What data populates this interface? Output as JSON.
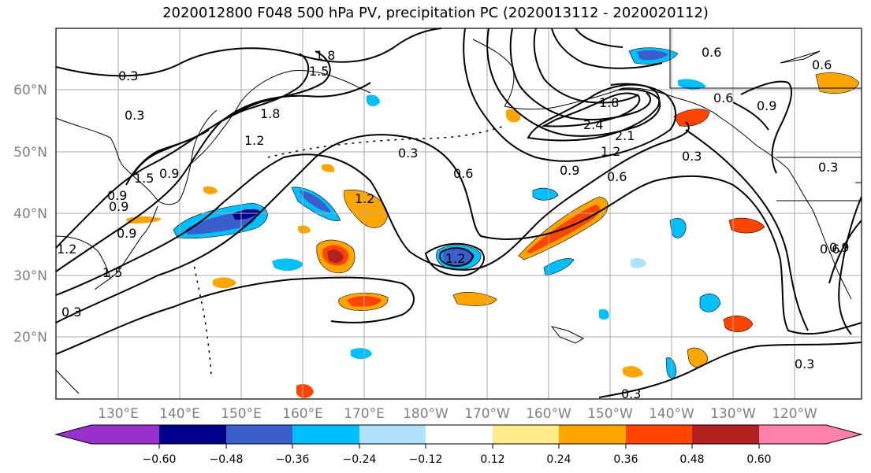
{
  "title": "2020012800 F048 500 hPa PV, precipitation PC (2020013112 - 2020020112)",
  "lat_labels": [
    "60°N",
    "50°N",
    "40°N",
    "30°N",
    "20°N"
  ],
  "lon_labels": [
    "130°E",
    "140°E",
    "150°E",
    "160°E",
    "170°E",
    "180°W",
    "170°W",
    "160°W",
    "150°W",
    "140°W",
    "130°W",
    "120°W"
  ],
  "colorbar": {
    "ticks": [
      "−0.60",
      "−0.48",
      "−0.36",
      "−0.24",
      "−0.12",
      "0.12",
      "0.24",
      "0.36",
      "0.48",
      "0.60"
    ],
    "colors": [
      "#9932cc",
      "#00008b",
      "#3a5fcd",
      "#00bfff",
      "#b0e2ff",
      "#ffffff",
      "#ffec8b",
      "#ffa500",
      "#ff4500",
      "#b22222",
      "#ff82ab"
    ]
  },
  "contour_labels": [
    "0.3",
    "0.3",
    "0.3",
    "0.3",
    "0.3",
    "0.3",
    "0.6",
    "0.6",
    "0.6",
    "0.6",
    "0.9",
    "0.9",
    "0.9",
    "0.9",
    "0.9",
    "1.2",
    "1.2",
    "1.2",
    "1.2",
    "1.2",
    "1.5",
    "1.5",
    "1.5",
    "1.8",
    "1.8",
    "2.1",
    "2.4",
    "1.8",
    "0.9",
    "0.6",
    "0.3",
    "0.9",
    "0.3",
    "0.6"
  ]
}
